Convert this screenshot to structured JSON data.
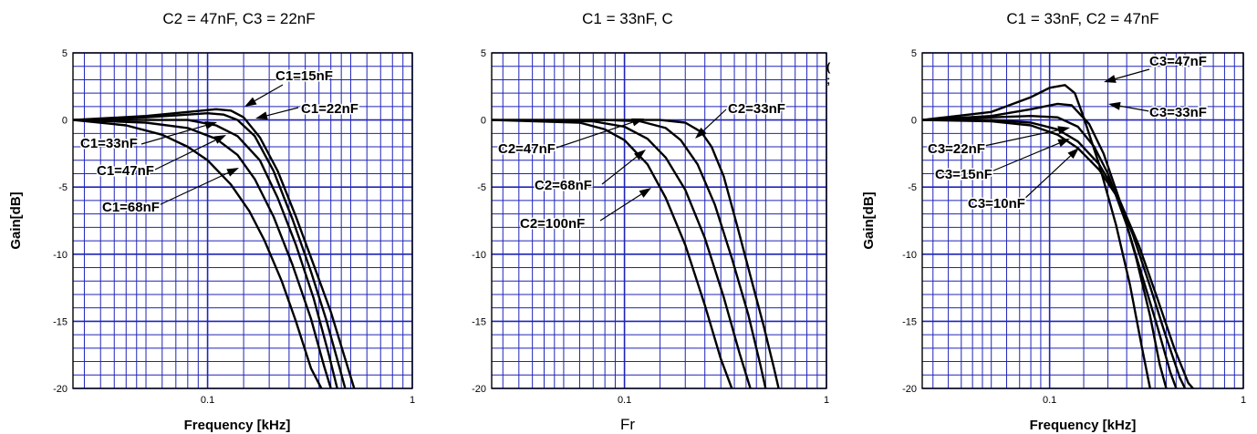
{
  "chart_data": [
    {
      "type": "line",
      "title": "C2 = 47nF, C3 = 22nF",
      "xlabel": "Frequency [kHz]",
      "ylabel": "Gain[dB]",
      "xscale": "log",
      "xlim": [
        0.022,
        1
      ],
      "ylim": [
        -20,
        5
      ],
      "y_ticks": [
        "5",
        "0",
        "-5",
        "-10",
        "-15",
        "-20"
      ],
      "x_ticks": [
        "0.1",
        "1"
      ],
      "grid": true,
      "grid_color": "#1f24b8",
      "series": [
        {
          "name": "C1=15nF",
          "x": [
            0.022,
            0.05,
            0.08,
            0.11,
            0.13,
            0.15,
            0.18,
            0.22,
            0.27,
            0.33,
            0.4,
            0.47,
            0.52
          ],
          "y": [
            0,
            0.3,
            0.6,
            0.8,
            0.7,
            0.2,
            -1.3,
            -3.8,
            -7.2,
            -10.8,
            -14.3,
            -17.8,
            -20
          ]
        },
        {
          "name": "C1=22nF",
          "x": [
            0.022,
            0.05,
            0.08,
            0.1,
            0.12,
            0.14,
            0.17,
            0.21,
            0.26,
            0.32,
            0.38,
            0.44,
            0.47
          ],
          "y": [
            0,
            0.2,
            0.4,
            0.5,
            0.4,
            0,
            -1.2,
            -3.8,
            -7.4,
            -11.3,
            -14.9,
            -18.4,
            -20
          ]
        },
        {
          "name": "C1=33nF",
          "x": [
            0.022,
            0.05,
            0.08,
            0.11,
            0.14,
            0.18,
            0.22,
            0.27,
            0.33,
            0.39,
            0.43
          ],
          "y": [
            0,
            0,
            0,
            -0.4,
            -1.2,
            -3.0,
            -5.8,
            -9.3,
            -13.3,
            -17.4,
            -20
          ]
        },
        {
          "name": "C1=47nF",
          "x": [
            0.022,
            0.05,
            0.08,
            0.11,
            0.14,
            0.17,
            0.21,
            0.26,
            0.32,
            0.37,
            0.4
          ],
          "y": [
            0,
            -0.2,
            -0.6,
            -1.4,
            -2.6,
            -4.4,
            -7.2,
            -10.8,
            -14.8,
            -18.3,
            -20
          ]
        },
        {
          "name": "C1=68nF",
          "x": [
            0.022,
            0.04,
            0.06,
            0.08,
            0.1,
            0.13,
            0.16,
            0.19,
            0.23,
            0.27,
            0.32,
            0.36
          ],
          "y": [
            0,
            -0.4,
            -1.1,
            -2.0,
            -3.0,
            -4.8,
            -6.8,
            -9.0,
            -12.0,
            -15.0,
            -18.5,
            -20
          ]
        }
      ],
      "labels": [
        "C1=15nF",
        "C1=22nF",
        "C1=33nF",
        "C1=47nF",
        "C1=68nF"
      ]
    },
    {
      "type": "line",
      "title": "C1 = 33nF, C",
      "xlabel": "Fr",
      "ylabel": "",
      "xscale": "log",
      "xlim": [
        0.022,
        1
      ],
      "ylim": [
        -20,
        5
      ],
      "y_ticks": [
        "5",
        "0",
        "-5",
        "-10",
        "-15",
        "-20"
      ],
      "x_ticks": [
        "0.1",
        "1"
      ],
      "grid": true,
      "grid_color": "#1f24b8",
      "series": [
        {
          "name": "C2=33nF",
          "x": [
            0.022,
            0.1,
            0.15,
            0.2,
            0.24,
            0.27,
            0.31,
            0.36,
            0.42,
            0.49,
            0.55,
            0.58
          ],
          "y": [
            0,
            0,
            0,
            -0.2,
            -0.9,
            -2.0,
            -4.2,
            -7.8,
            -11.6,
            -15.4,
            -18.5,
            -20
          ]
        },
        {
          "name": "C2=47nF",
          "x": [
            0.022,
            0.08,
            0.12,
            0.16,
            0.19,
            0.23,
            0.28,
            0.34,
            0.41,
            0.47,
            0.5
          ],
          "y": [
            0,
            0,
            -0.1,
            -0.6,
            -1.5,
            -3.3,
            -6.3,
            -10.3,
            -14.5,
            -18.2,
            -20
          ]
        },
        {
          "name": "C2=68nF",
          "x": [
            0.022,
            0.07,
            0.1,
            0.13,
            0.16,
            0.2,
            0.25,
            0.31,
            0.37,
            0.42
          ],
          "y": [
            0,
            -0.1,
            -0.5,
            -1.4,
            -2.8,
            -5.2,
            -8.8,
            -13.2,
            -17.3,
            -20
          ]
        },
        {
          "name": "C2=100nF",
          "x": [
            0.022,
            0.06,
            0.08,
            0.1,
            0.13,
            0.16,
            0.2,
            0.25,
            0.3,
            0.34
          ],
          "y": [
            0,
            -0.2,
            -0.7,
            -1.5,
            -3.3,
            -5.8,
            -9.3,
            -13.8,
            -17.8,
            -20
          ]
        }
      ],
      "labels": [
        "C2=33nF",
        "C2=47nF",
        "C2=68nF",
        "C2=100nF"
      ],
      "stray_marks": [
        "(",
        ";",
        "("
      ]
    },
    {
      "type": "line",
      "title": "C1 = 33nF, C2 = 47nF",
      "xlabel": "Frequency [kHz]",
      "ylabel": "Gain[dB]",
      "xscale": "log",
      "xlim": [
        0.022,
        1
      ],
      "ylim": [
        -20,
        5
      ],
      "y_ticks": [
        "5",
        "0",
        "-5",
        "-10",
        "-15",
        "-20"
      ],
      "x_ticks": [
        "0.1",
        "1"
      ],
      "grid": true,
      "grid_color": "#1f24b8",
      "series": [
        {
          "name": "C3=47nF",
          "x": [
            0.022,
            0.05,
            0.08,
            0.1,
            0.12,
            0.135,
            0.15,
            0.18,
            0.22,
            0.26,
            0.3,
            0.33
          ],
          "y": [
            0,
            0.6,
            1.7,
            2.4,
            2.6,
            2.0,
            0.2,
            -3.3,
            -7.8,
            -12.3,
            -17.0,
            -20
          ]
        },
        {
          "name": "C3=33nF",
          "x": [
            0.022,
            0.05,
            0.08,
            0.11,
            0.13,
            0.16,
            0.19,
            0.23,
            0.28,
            0.33,
            0.37,
            0.4
          ],
          "y": [
            0,
            0.3,
            0.8,
            1.2,
            1.1,
            -0.3,
            -2.5,
            -6.0,
            -10.3,
            -14.6,
            -18.2,
            -20
          ]
        },
        {
          "name": "C3=22nF",
          "x": [
            0.022,
            0.05,
            0.08,
            0.11,
            0.14,
            0.17,
            0.2,
            0.25,
            0.3,
            0.36,
            0.42,
            0.45
          ],
          "y": [
            0,
            0.2,
            0.3,
            0.2,
            -0.5,
            -2.0,
            -4.0,
            -7.8,
            -11.6,
            -15.4,
            -18.8,
            -20
          ]
        },
        {
          "name": "C3=15nF",
          "x": [
            0.022,
            0.05,
            0.08,
            0.11,
            0.14,
            0.18,
            0.22,
            0.27,
            0.33,
            0.4,
            0.47,
            0.5
          ],
          "y": [
            0,
            0,
            -0.2,
            -0.7,
            -1.6,
            -3.3,
            -5.4,
            -8.6,
            -12.4,
            -16.2,
            -19.2,
            -20
          ]
        },
        {
          "name": "C3=10nF",
          "x": [
            0.022,
            0.05,
            0.08,
            0.11,
            0.14,
            0.18,
            0.23,
            0.29,
            0.36,
            0.44,
            0.52,
            0.55
          ],
          "y": [
            0,
            -0.1,
            -0.4,
            -1.1,
            -2.1,
            -3.7,
            -6.0,
            -9.4,
            -13.3,
            -17.0,
            -19.6,
            -20
          ]
        }
      ],
      "labels": [
        "C3=47nF",
        "C3=33nF",
        "C3=22nF",
        "C3=15nF",
        "C3=10nF"
      ]
    }
  ]
}
